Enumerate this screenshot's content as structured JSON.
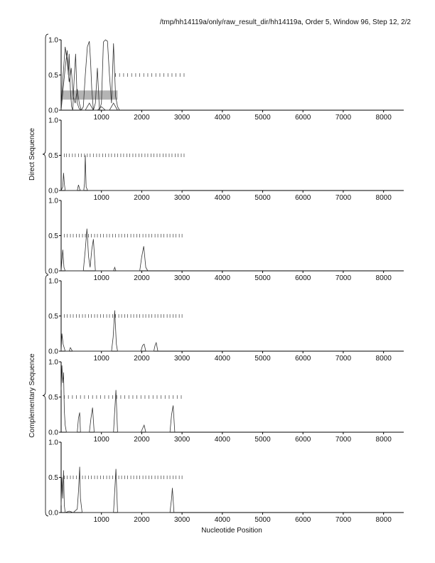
{
  "header": {
    "title": "/tmp/hh14119a/only/raw_result_dir/hh14119a, Order 5, Window 96, Step 12, 2/2"
  },
  "chart_data": {
    "type": "line",
    "xlabel": "Nucleotide Position",
    "xlim": [
      0,
      8500
    ],
    "ylim": [
      0,
      1
    ],
    "x_ticks": [
      1000,
      2000,
      3000,
      4000,
      5000,
      6000,
      7000,
      8000
    ],
    "y_ticks": [
      0.0,
      0.5,
      1.0
    ],
    "y_tick_labels": [
      "0.0",
      "0.5",
      "1.0"
    ],
    "groups": [
      {
        "label": "Direct Sequence",
        "panels": [
          0,
          1,
          2
        ]
      },
      {
        "label": "Complementary Sequence",
        "panels": [
          3,
          4,
          5
        ]
      }
    ],
    "marker_ticks": {
      "y": 0.5,
      "range": [
        80,
        3050
      ]
    },
    "panels": [
      {
        "highlight": {
          "x": [
            0,
            1400
          ],
          "y": [
            0.15,
            0.28
          ]
        },
        "marker_positions": [
          1350,
          1450,
          1550,
          1650,
          1750,
          1850,
          1950,
          2050,
          2150,
          2250,
          2350,
          2450,
          2550,
          2650,
          2750,
          2850,
          2950,
          3050
        ],
        "series": [
          {
            "x": [
              0,
              50,
              100,
              150,
              180,
              200,
              230,
              260,
              290,
              320,
              360,
              400,
              450,
              500,
              550,
              600,
              650,
              700,
              730,
              760,
              800,
              850,
              900,
              950,
              1000,
              1050,
              1100,
              1150,
              1200,
              1250,
              1300,
              1350,
              1400,
              1450
            ],
            "y": [
              0.0,
              0.3,
              0.6,
              0.85,
              0.5,
              0.8,
              0.3,
              0.05,
              0.0,
              0.4,
              0.8,
              0.1,
              0.02,
              0.0,
              0.05,
              0.5,
              0.9,
              0.98,
              0.7,
              0.3,
              0.0,
              0.1,
              0.6,
              0.0,
              0.1,
              0.97,
              1.0,
              0.98,
              0.5,
              0.1,
              0.95,
              0.2,
              0.05,
              0.0
            ]
          },
          {
            "x": [
              0,
              50,
              100,
              150,
              200,
              250,
              300,
              350,
              400,
              450,
              500,
              600,
              700,
              800,
              900,
              1000,
              1100,
              1200,
              1300,
              1400
            ],
            "y": [
              0.05,
              0.5,
              0.9,
              0.7,
              0.4,
              0.6,
              0.2,
              0.1,
              0.3,
              0.1,
              0.0,
              0.0,
              0.1,
              0.0,
              0.0,
              0.05,
              0.0,
              0.0,
              0.1,
              0.0
            ]
          }
        ]
      },
      {
        "marker_positions": [
          80,
          130,
          200,
          280,
          350,
          430,
          500,
          580,
          650,
          720,
          800,
          880,
          950,
          1030,
          1100,
          1180,
          1250,
          1330,
          1400,
          1480,
          1550,
          1630,
          1700,
          1780,
          1850,
          1930,
          2000,
          2080,
          2150,
          2230,
          2300,
          2380,
          2450,
          2530,
          2600,
          2680,
          2750,
          2830,
          2900,
          2980,
          3050
        ],
        "series": [
          {
            "x": [
              0,
              40,
              60,
              80,
              100,
              150,
              400,
              430,
              460,
              480,
              560,
              580,
              600,
              620,
              660,
              3000
            ],
            "y": [
              0.0,
              0.05,
              0.25,
              0.1,
              0.0,
              0.0,
              0.0,
              0.08,
              0.02,
              0.0,
              0.0,
              0.1,
              0.5,
              0.05,
              0.0,
              0.0
            ]
          }
        ]
      },
      {
        "marker_positions": [
          80,
          150,
          230,
          300,
          380,
          450,
          530,
          600,
          680,
          750,
          830,
          900,
          980,
          1050,
          1130,
          1200,
          1280,
          1350,
          1430,
          1500,
          1580,
          1650,
          1730,
          1800,
          1880,
          1950,
          2030,
          2100,
          2180,
          2250,
          2330,
          2400,
          2480,
          2550,
          2630,
          2700,
          2780,
          2850,
          2930,
          3000
        ],
        "series": [
          {
            "x": [
              0,
              40,
              70,
              100,
              550,
              600,
              640,
              680,
              720,
              760,
              800,
              850,
              1300,
              1330,
              1360,
              1950,
              2000,
              2050,
              2100,
              2150
            ],
            "y": [
              0.0,
              0.3,
              0.05,
              0.0,
              0.0,
              0.3,
              0.6,
              0.2,
              0.05,
              0.3,
              0.45,
              0.0,
              0.0,
              0.05,
              0.0,
              0.0,
              0.2,
              0.35,
              0.05,
              0.0
            ]
          }
        ]
      },
      {
        "marker_positions": [
          80,
          150,
          230,
          300,
          380,
          450,
          530,
          600,
          680,
          750,
          830,
          900,
          980,
          1050,
          1130,
          1200,
          1280,
          1350,
          1430,
          1500,
          1580,
          1650,
          1730,
          1800,
          1880,
          1950,
          2030,
          2100,
          2180,
          2250,
          2330,
          2400,
          2480,
          2550,
          2630,
          2700,
          2780,
          2850,
          2930,
          3000
        ],
        "series": [
          {
            "x": [
              0,
              20,
              50,
              100,
              150,
              200,
              230,
              280,
              1250,
              1290,
              1330,
              1370,
              1400,
              1980,
              2020,
              2060,
              2100,
              2300,
              2330,
              2360,
              2400
            ],
            "y": [
              0.0,
              0.25,
              0.1,
              0.0,
              0.0,
              0.0,
              0.05,
              0.0,
              0.0,
              0.2,
              0.58,
              0.1,
              0.0,
              0.0,
              0.08,
              0.1,
              0.0,
              0.0,
              0.08,
              0.12,
              0.0
            ]
          }
        ]
      },
      {
        "marker_positions": [
          80,
          180,
          280,
          380,
          480,
          580,
          680,
          780,
          880,
          980,
          1080,
          1180,
          1280,
          1380,
          1480,
          1580,
          1680,
          1780,
          1880,
          1980,
          2080,
          2180,
          2280,
          2380,
          2480,
          2580,
          2680,
          2780,
          2880,
          2980
        ],
        "series": [
          {
            "x": [
              0,
              20,
              40,
              60,
              80,
              100,
              130,
              160,
              400,
              430,
              460,
              480,
              700,
              740,
              780,
              820,
              1300,
              1330,
              1360,
              1400,
              1980,
              2020,
              2060,
              2100,
              2700,
              2740,
              2780,
              2820
            ],
            "y": [
              0.6,
              0.95,
              0.7,
              0.85,
              0.3,
              0.1,
              0.0,
              0.0,
              0.0,
              0.2,
              0.28,
              0.0,
              0.0,
              0.2,
              0.35,
              0.0,
              0.0,
              0.3,
              0.6,
              0.0,
              0.0,
              0.05,
              0.1,
              0.0,
              0.0,
              0.25,
              0.38,
              0.0
            ]
          }
        ]
      },
      {
        "marker_positions": [
          80,
          150,
          230,
          300,
          380,
          450,
          530,
          600,
          680,
          750,
          830,
          900,
          980,
          1050,
          1130,
          1200,
          1280,
          1350,
          1430,
          1500,
          1580,
          1650,
          1730,
          1800,
          1880,
          1950,
          2030,
          2100,
          2180,
          2250,
          2330,
          2400,
          2480,
          2550,
          2630,
          2700,
          2780,
          2850,
          2930,
          3000
        ],
        "series": [
          {
            "x": [
              0,
              20,
              40,
              60,
              80,
              100,
              200,
              300,
              400,
              430,
              460,
              480,
              520,
              1300,
              1330,
              1360,
              1400,
              2700,
              2740,
              2760,
              2800
            ],
            "y": [
              0.1,
              0.5,
              0.2,
              0.6,
              0.1,
              0.0,
              0.02,
              0.0,
              0.05,
              0.3,
              0.65,
              0.2,
              0.0,
              0.0,
              0.3,
              0.62,
              0.0,
              0.0,
              0.2,
              0.35,
              0.0
            ]
          }
        ]
      }
    ]
  }
}
